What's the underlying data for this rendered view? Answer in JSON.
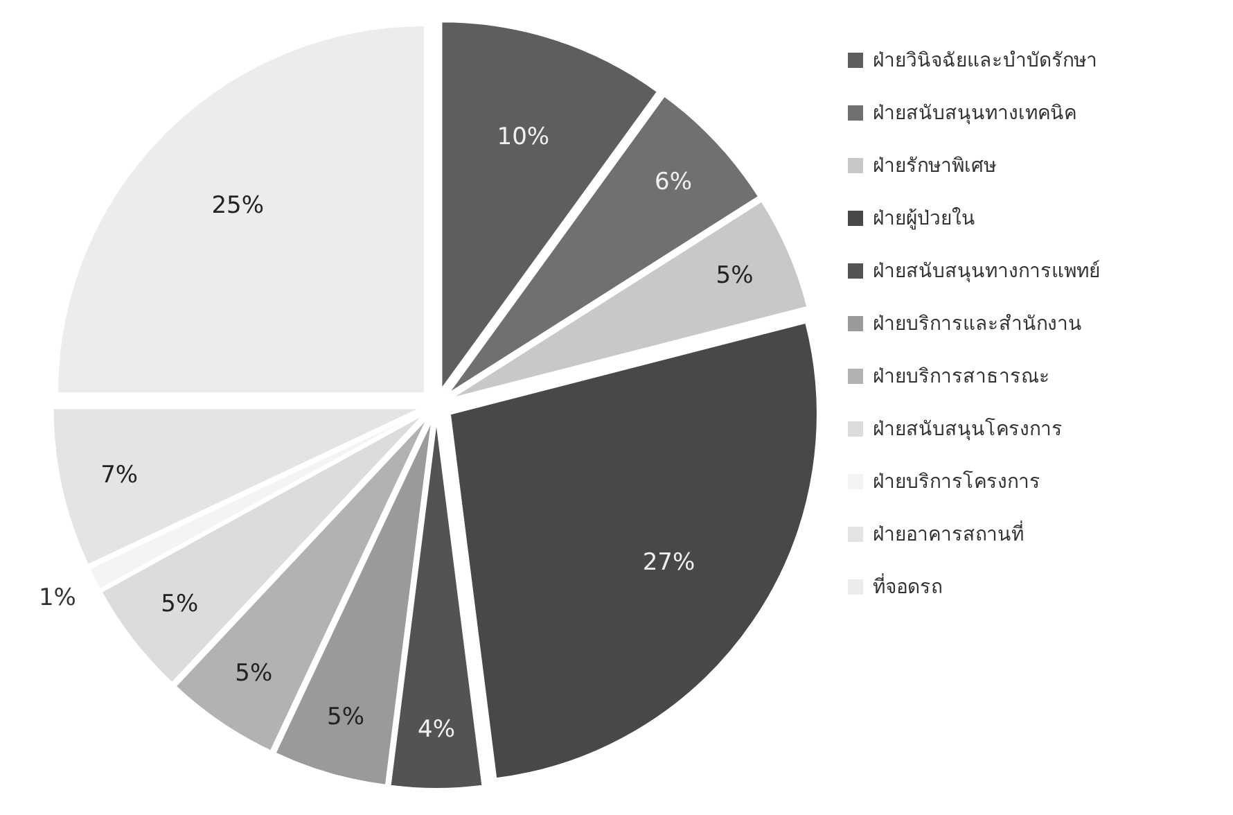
{
  "chart_data": {
    "type": "pie",
    "categories": [
      "ฝ่ายวินิจฉัยและบำบัดรักษา",
      "ฝ่ายสนับสนุนทางเทคนิค",
      "ฝ่ายรักษาพิเศษ",
      "ฝ่ายผู้ป่วยใน",
      "ฝ่ายสนับสนุนทางการแพทย์",
      "ฝ่ายบริการและสำนักงาน",
      "ฝ่ายบริการสาธารณะ",
      "ฝ่ายสนับสนุนโครงการ",
      "ฝ่ายบริการโครงการ",
      "ฝ่ายอาคารสถานที่",
      "ที่จอดรถ"
    ],
    "values": [
      10,
      6,
      5,
      27,
      4,
      5,
      5,
      5,
      1,
      7,
      25
    ],
    "value_labels": [
      "10%",
      "6%",
      "5%",
      "27%",
      "4%",
      "5%",
      "5%",
      "5%",
      "1%",
      "7%",
      "25%"
    ],
    "colors": [
      "#5e5e5e",
      "#707070",
      "#c8c8c8",
      "#484848",
      "#535353",
      "#9a9a9a",
      "#b2b2b2",
      "#dcdcdc",
      "#f4f4f4",
      "#e4e4e4",
      "#ececec"
    ],
    "legend": "right"
  }
}
